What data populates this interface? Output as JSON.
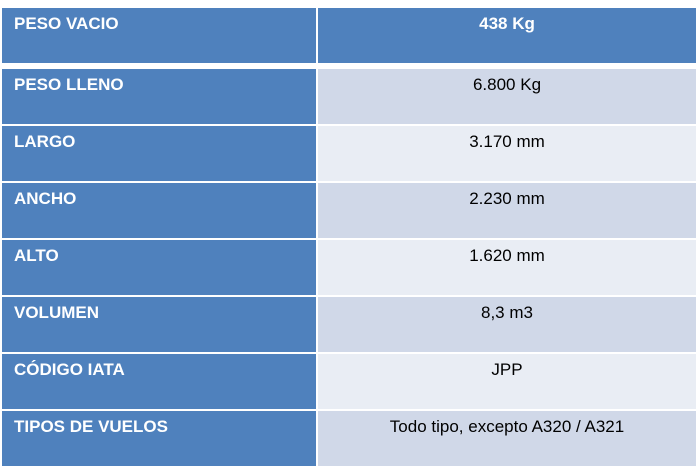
{
  "rows": [
    {
      "label": "PESO VACIO",
      "value": "438 Kg"
    },
    {
      "label": "PESO LLENO",
      "value": "6.800 Kg"
    },
    {
      "label": "LARGO",
      "value": "3.170 mm"
    },
    {
      "label": "ANCHO",
      "value": "2.230 mm"
    },
    {
      "label": "ALTO",
      "value": "1.620 mm"
    },
    {
      "label": "VOLUMEN",
      "value": "8,3 m3"
    },
    {
      "label": "CÓDIGO IATA",
      "value": "JPP"
    },
    {
      "label": "TIPOS DE VUELOS",
      "value": "Todo tipo, excepto A320 / A321"
    }
  ],
  "colors": {
    "header": "#4F81BD",
    "band_dark": "#D0D8E8",
    "band_light": "#E9EDF4"
  }
}
